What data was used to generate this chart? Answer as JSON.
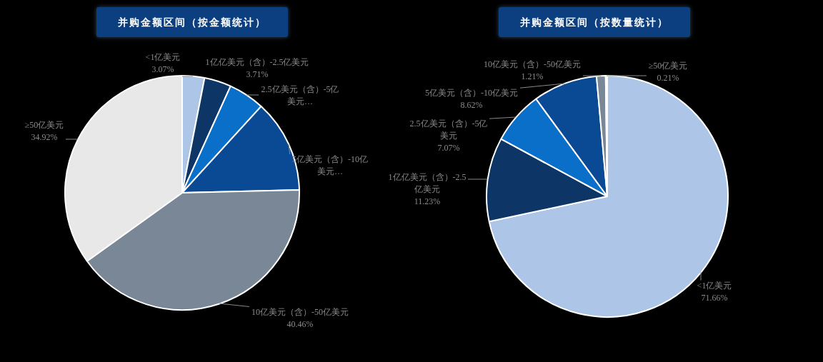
{
  "chart_data": [
    {
      "type": "pie",
      "title": "并购金额区间（按金额统计）",
      "categories": [
        "<1亿美元",
        "1亿亿美元（含）-2.5亿美元",
        "2.5亿美元（含）-5亿美元…",
        "5亿美元（含）-10亿美元…",
        "10亿美元（含）-50亿美元",
        "≥50亿美元"
      ],
      "values": [
        3.07,
        3.71,
        5.0,
        12.84,
        40.46,
        34.92
      ],
      "value_labels": [
        "3.07%",
        "3.71%",
        null,
        null,
        "40.46%",
        "34.92%"
      ],
      "colors": [
        "#adc6e8",
        "#0d3566",
        "#0a6fc9",
        "#0a4a94",
        "#7a8797",
        "#e8e8e8"
      ],
      "legend": false
    },
    {
      "type": "pie",
      "title": "并购金额区间（按数量统计）",
      "categories": [
        "<1亿美元",
        "1亿亿美元（含）-2.5亿美元",
        "2.5亿美元（含）-5亿美元",
        "5亿美元（含）-10亿美元",
        "10亿美元（含）-50亿美元",
        "≥50亿美元"
      ],
      "values": [
        71.66,
        11.23,
        7.07,
        8.62,
        1.21,
        0.21
      ],
      "value_labels": [
        "71.66%",
        "11.23%",
        "7.07%",
        "8.62%",
        "1.21%",
        "0.21%"
      ],
      "colors": [
        "#adc6e8",
        "#0d3566",
        "#0a6fc9",
        "#0a4a94",
        "#7a8797",
        "#e8e8e8"
      ],
      "legend": false
    }
  ]
}
